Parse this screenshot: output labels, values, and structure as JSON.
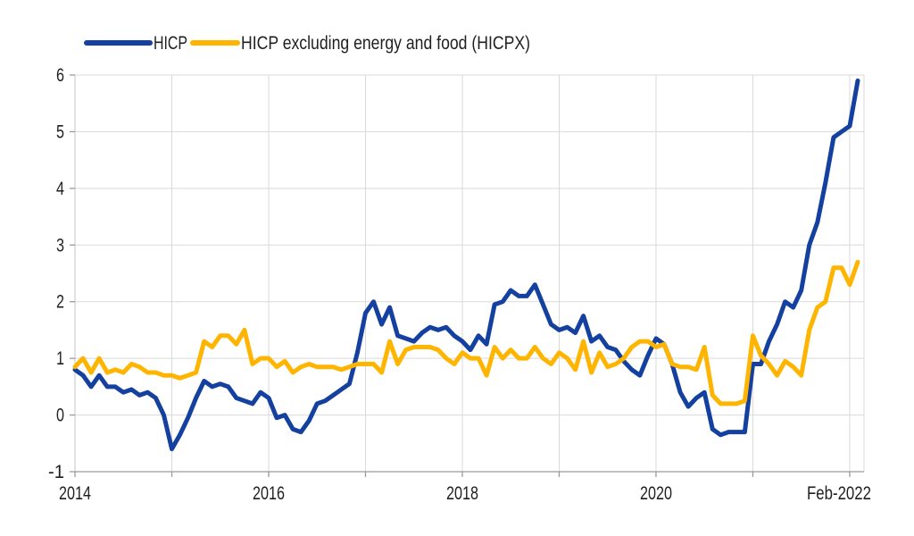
{
  "legend": {
    "items": [
      {
        "label": "HICP",
        "color": "#14409F"
      },
      {
        "label": "HICP excluding energy and food (HICPX)",
        "color": "#FFB400"
      }
    ]
  },
  "chart_data": {
    "type": "line",
    "title": "",
    "x_unit": "month",
    "x_start": "2014-01",
    "x_end": "2022-02",
    "x_tick_labels": [
      "2014",
      "2016",
      "2018",
      "2020",
      "Feb-2022"
    ],
    "x_tick_month_index": [
      0,
      24,
      48,
      72,
      97
    ],
    "y_ticks": [
      -1,
      0,
      1,
      2,
      3,
      4,
      5,
      6
    ],
    "y_tick_labels": [
      "-1",
      "0",
      "1",
      "2",
      "3",
      "4",
      "5",
      "6"
    ],
    "ylim": [
      -1,
      6
    ],
    "grid": "both",
    "legend_position": "top-left",
    "colors": {
      "hicp_line": "#14409F",
      "hicpx_line": "#FFB400",
      "gridline": "#D9D9D9",
      "axis": "#9B9B9B",
      "text": "#1F1F1F"
    },
    "series": [
      {
        "name": "HICP",
        "color": "#14409F",
        "values": [
          0.8,
          0.7,
          0.5,
          0.7,
          0.5,
          0.5,
          0.4,
          0.45,
          0.35,
          0.4,
          0.3,
          0.0,
          -0.6,
          -0.35,
          -0.05,
          0.3,
          0.6,
          0.5,
          0.55,
          0.5,
          0.3,
          0.25,
          0.2,
          0.4,
          0.3,
          -0.05,
          0.0,
          -0.25,
          -0.3,
          -0.1,
          0.2,
          0.25,
          0.35,
          0.45,
          0.55,
          1.1,
          1.8,
          2.0,
          1.6,
          1.9,
          1.4,
          1.35,
          1.3,
          1.45,
          1.55,
          1.5,
          1.55,
          1.4,
          1.3,
          1.15,
          1.4,
          1.25,
          1.95,
          2.0,
          2.2,
          2.1,
          2.1,
          2.3,
          1.95,
          1.6,
          1.5,
          1.55,
          1.45,
          1.75,
          1.3,
          1.4,
          1.2,
          1.15,
          0.95,
          0.8,
          0.7,
          1.05,
          1.35,
          1.25,
          0.9,
          0.4,
          0.15,
          0.3,
          0.4,
          -0.25,
          -0.35,
          -0.3,
          -0.3,
          -0.3,
          0.9,
          0.9,
          1.3,
          1.6,
          2.0,
          1.9,
          2.2,
          3.0,
          3.4,
          4.1,
          4.9,
          5.0,
          5.1,
          5.9
        ]
      },
      {
        "name": "HICP excluding energy and food (HICPX)",
        "color": "#FFB400",
        "values": [
          0.85,
          1.0,
          0.75,
          1.0,
          0.75,
          0.8,
          0.75,
          0.9,
          0.85,
          0.75,
          0.75,
          0.7,
          0.7,
          0.65,
          0.7,
          0.75,
          1.3,
          1.2,
          1.4,
          1.4,
          1.25,
          1.5,
          0.9,
          1.0,
          1.0,
          0.85,
          0.95,
          0.75,
          0.85,
          0.9,
          0.85,
          0.85,
          0.85,
          0.8,
          0.85,
          0.9,
          0.9,
          0.9,
          0.75,
          1.3,
          0.9,
          1.15,
          1.2,
          1.2,
          1.2,
          1.15,
          1.0,
          0.9,
          1.1,
          1.0,
          1.0,
          0.7,
          1.2,
          1.0,
          1.15,
          1.0,
          1.0,
          1.2,
          1.0,
          0.9,
          1.1,
          1.0,
          0.8,
          1.3,
          0.75,
          1.1,
          0.85,
          0.9,
          1.0,
          1.2,
          1.3,
          1.3,
          1.2,
          1.25,
          0.9,
          0.85,
          0.85,
          0.8,
          1.2,
          0.35,
          0.2,
          0.2,
          0.2,
          0.25,
          1.4,
          1.05,
          0.9,
          0.7,
          0.95,
          0.85,
          0.7,
          1.5,
          1.9,
          2.0,
          2.6,
          2.6,
          2.3,
          2.7
        ]
      }
    ]
  }
}
